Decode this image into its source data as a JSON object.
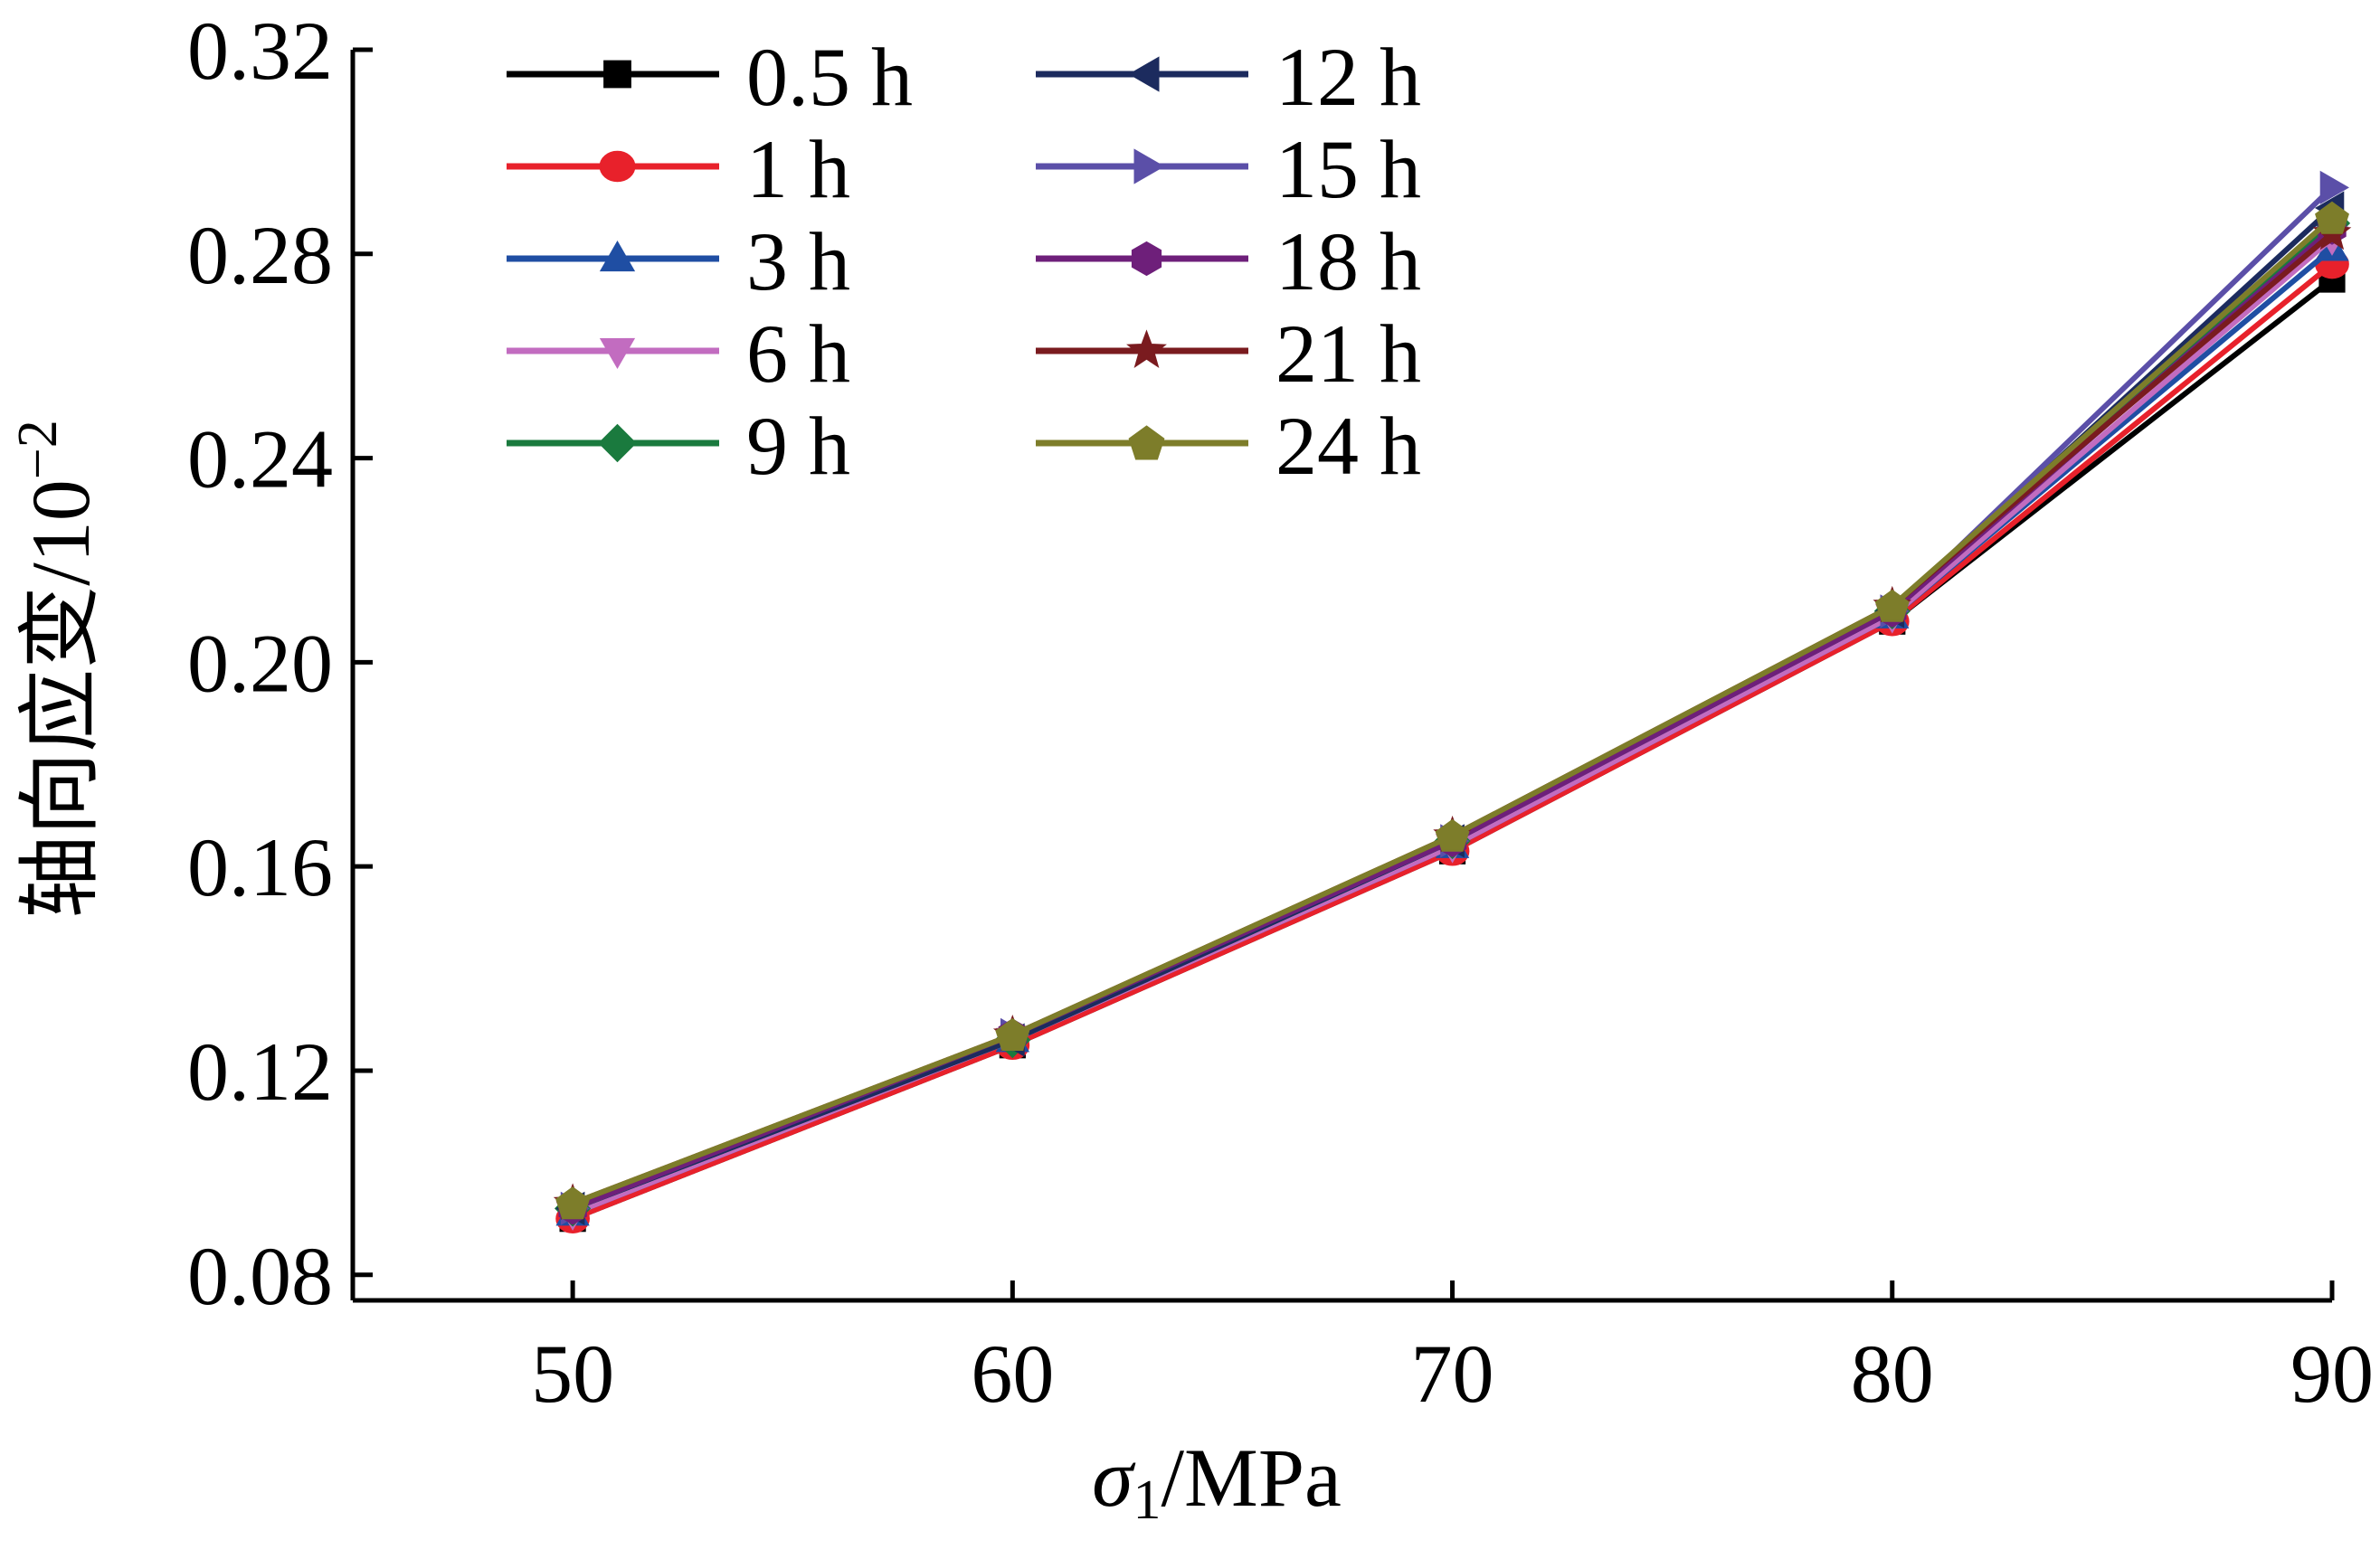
{
  "chart_data": {
    "type": "line",
    "xlabel": "σ1/MPa",
    "xlabel_main": "σ",
    "xlabel_sub": "1",
    "xlabel_rest": "/MPa",
    "ylabel": "轴向应变/10−2",
    "ylabel_main": "轴向应变/10",
    "ylabel_sup": "−2",
    "xlim": [
      45,
      90
    ],
    "ylim": [
      0.075,
      0.32
    ],
    "xticks": [
      50,
      60,
      70,
      80,
      90
    ],
    "xtick_labels": [
      "50",
      "60",
      "70",
      "80",
      "90"
    ],
    "yticks": [
      0.08,
      0.12,
      0.16,
      0.2,
      0.24,
      0.28,
      0.32
    ],
    "ytick_labels": [
      "0.08",
      "0.12",
      "0.16",
      "0.20",
      "0.24",
      "0.28",
      "0.32"
    ],
    "grid": false,
    "legend_position": "top-left",
    "x": [
      50,
      60,
      70,
      80,
      90
    ],
    "series": [
      {
        "name": "0.5 h",
        "color": "#000000",
        "marker": "square",
        "values": [
          0.091,
          0.125,
          0.163,
          0.208,
          0.275
        ]
      },
      {
        "name": "1 h",
        "color": "#e8212b",
        "marker": "circle",
        "values": [
          0.091,
          0.125,
          0.163,
          0.208,
          0.278
        ]
      },
      {
        "name": "3 h",
        "color": "#1f4ea3",
        "marker": "triangle-up",
        "values": [
          0.092,
          0.126,
          0.164,
          0.209,
          0.281
        ]
      },
      {
        "name": "6 h",
        "color": "#c26cc0",
        "marker": "triangle-down",
        "values": [
          0.092,
          0.126,
          0.164,
          0.209,
          0.283
        ]
      },
      {
        "name": "9 h",
        "color": "#1a7a3e",
        "marker": "diamond",
        "values": [
          0.093,
          0.126,
          0.165,
          0.21,
          0.286
        ]
      },
      {
        "name": "12 h",
        "color": "#1c2b5e",
        "marker": "triangle-left",
        "values": [
          0.093,
          0.126,
          0.165,
          0.21,
          0.289
        ]
      },
      {
        "name": "15 h",
        "color": "#5b4fa8",
        "marker": "triangle-right",
        "values": [
          0.093,
          0.127,
          0.165,
          0.21,
          0.293
        ]
      },
      {
        "name": "18 h",
        "color": "#6e1f7a",
        "marker": "hexagon",
        "values": [
          0.093,
          0.127,
          0.165,
          0.21,
          0.285
        ]
      },
      {
        "name": "21 h",
        "color": "#7a1b1f",
        "marker": "star",
        "values": [
          0.094,
          0.127,
          0.166,
          0.211,
          0.284
        ]
      },
      {
        "name": "24 h",
        "color": "#7d7d2a",
        "marker": "pentagon",
        "values": [
          0.094,
          0.127,
          0.166,
          0.211,
          0.287
        ]
      }
    ]
  }
}
